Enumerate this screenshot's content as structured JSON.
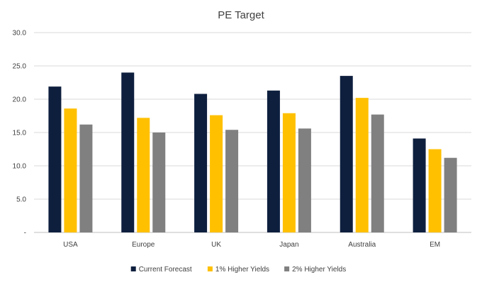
{
  "chart_data": {
    "type": "bar",
    "title": "PE Target",
    "categories": [
      "USA",
      "Europe",
      "UK",
      "Japan",
      "Australia",
      "EM"
    ],
    "series": [
      {
        "name": "Current Forecast",
        "color": "#0e1f3e",
        "values": [
          21.9,
          24.0,
          20.8,
          21.3,
          23.5,
          14.1
        ]
      },
      {
        "name": "1% Higher Yields",
        "color": "#ffc000",
        "values": [
          18.6,
          17.2,
          17.6,
          17.9,
          20.2,
          12.5
        ]
      },
      {
        "name": "2% Higher Yields",
        "color": "#808080",
        "values": [
          16.2,
          15.0,
          15.4,
          15.6,
          17.7,
          11.2
        ]
      }
    ],
    "ylim": [
      0,
      30
    ],
    "yticks": [
      "-",
      "5.0",
      "10.0",
      "15.0",
      "20.0",
      "25.0",
      "30.0"
    ],
    "grid": true,
    "legend_position": "bottom",
    "xlabel": "",
    "ylabel": ""
  }
}
